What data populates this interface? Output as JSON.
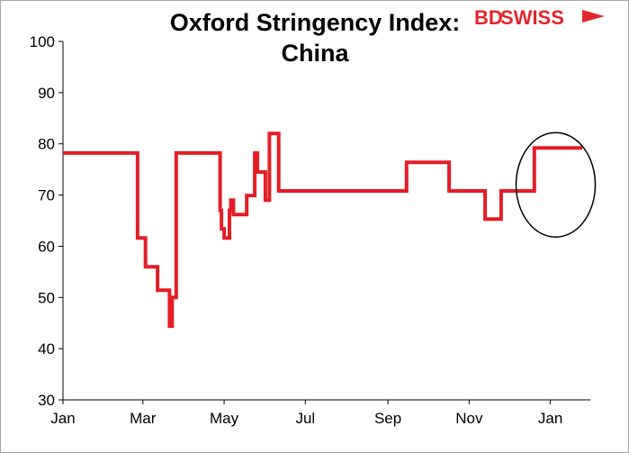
{
  "brand": {
    "logo_part1": "BD",
    "logo_part2": "SWISS",
    "color": "#e3262b"
  },
  "chart_data": {
    "type": "line",
    "title": "Oxford Stringency Index:",
    "subtitle": "China",
    "xlabel": "",
    "ylabel": "",
    "ylim": [
      30,
      100
    ],
    "yticks": [
      30,
      40,
      50,
      60,
      70,
      80,
      90,
      100
    ],
    "xticks": [
      "Jan",
      "Mar",
      "May",
      "Jul",
      "Sep",
      "Nov",
      "Jan"
    ],
    "grid": false,
    "legend": "none",
    "series": [
      {
        "color": "#e41e26",
        "x": [
          "2020-01-01",
          "2020-02-26",
          "2020-02-26",
          "2020-03-02",
          "2020-03-02",
          "2020-03-03",
          "2020-03-03",
          "2020-03-12",
          "2020-03-12",
          "2020-03-21",
          "2020-03-21",
          "2020-03-23",
          "2020-03-23",
          "2020-03-24",
          "2020-03-24",
          "2020-03-26",
          "2020-03-26",
          "2020-04-28",
          "2020-04-28",
          "2020-04-29",
          "2020-04-29",
          "2020-05-01",
          "2020-05-01",
          "2020-05-05",
          "2020-05-05",
          "2020-05-06",
          "2020-05-06",
          "2020-05-08",
          "2020-05-08",
          "2020-05-18",
          "2020-05-18",
          "2020-05-24",
          "2020-05-24",
          "2020-05-26",
          "2020-05-26",
          "2020-06-01",
          "2020-06-01",
          "2020-06-04",
          "2020-06-04",
          "2020-06-06",
          "2020-06-06",
          "2020-06-08",
          "2020-06-08",
          "2020-06-11",
          "2020-06-11",
          "2020-06-27",
          "2020-06-27",
          "2020-06-28",
          "2020-06-28",
          "2020-07-01",
          "2020-07-01",
          "2020-07-11",
          "2020-07-11",
          "2020-09-15",
          "2020-09-15",
          "2020-10-17",
          "2020-10-17",
          "2020-11-13",
          "2020-11-13",
          "2020-11-25",
          "2020-11-25",
          "2020-12-20",
          "2020-12-20",
          "2021-01-25"
        ],
        "values": [
          78.2,
          78.2,
          61.6,
          61.6,
          61.6,
          61.6,
          56.0,
          56.0,
          51.4,
          51.4,
          44.4,
          44.4,
          50.0,
          50.0,
          50.0,
          50.0,
          78.2,
          78.2,
          67.0,
          67.0,
          63.4,
          63.4,
          61.6,
          61.6,
          67.0,
          67.0,
          69.0,
          69.0,
          66.2,
          66.2,
          69.9,
          69.9,
          78.2,
          78.2,
          74.5,
          74.5,
          69.0,
          69.0,
          82.0,
          82.0,
          82.0,
          82.0,
          82.0,
          82.0,
          70.8,
          70.8,
          70.8,
          70.8,
          70.8,
          70.8,
          70.8,
          70.8,
          70.8,
          70.8,
          76.4,
          76.4,
          70.8,
          70.8,
          65.3,
          65.3,
          70.8,
          70.8,
          79.2,
          79.2
        ]
      }
    ],
    "annotations": [
      {
        "type": "ellipse",
        "target_date": "2021-01-05",
        "target_value": 72
      }
    ]
  }
}
